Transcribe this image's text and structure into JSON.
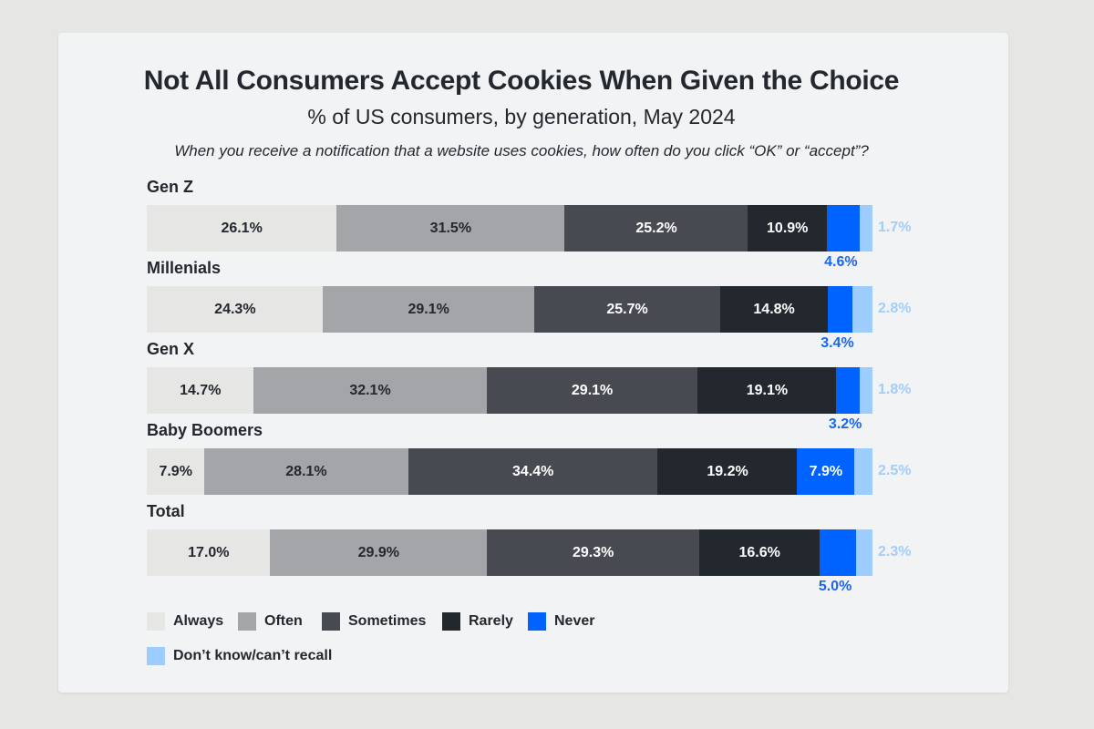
{
  "chart_data": {
    "type": "bar",
    "orientation": "horizontal-stacked-100",
    "title": "Not All Consumers Accept Cookies When Given the Choice",
    "subtitle": "% of US consumers, by generation, May 2024",
    "question": "When you receive a notification that a website uses cookies, how often do you click “OK” or “accept”?",
    "categories": [
      "Gen Z",
      "Millenials",
      "Gen X",
      "Baby Boomers",
      "Total"
    ],
    "series": [
      {
        "name": "Always",
        "color": "#e6e6e4",
        "label_color": "#23282f",
        "values": [
          26.1,
          24.3,
          14.7,
          7.9,
          17.0
        ]
      },
      {
        "name": "Often",
        "color": "#a4a5a8",
        "label_color": "#23282f",
        "values": [
          31.5,
          29.1,
          32.1,
          28.1,
          29.9
        ]
      },
      {
        "name": "Sometimes",
        "color": "#474a51",
        "label_color": "#ffffff",
        "values": [
          25.2,
          25.7,
          29.1,
          34.4,
          29.3
        ]
      },
      {
        "name": "Rarely",
        "color": "#23282f",
        "label_color": "#ffffff",
        "values": [
          10.9,
          14.8,
          19.1,
          19.2,
          16.6
        ]
      },
      {
        "name": "Never",
        "color": "#0062ff",
        "label_color": "#ffffff",
        "values": [
          4.6,
          3.4,
          3.2,
          7.9,
          5.0
        ]
      },
      {
        "name": "Don’t know/can’t recall",
        "color": "#9dcdff",
        "label_color": "#a3cdf7",
        "values": [
          1.7,
          2.8,
          1.8,
          2.5,
          2.3
        ]
      }
    ],
    "value_format": "percent, 1 decimal",
    "legend_position": "bottom-left",
    "grid": false
  }
}
